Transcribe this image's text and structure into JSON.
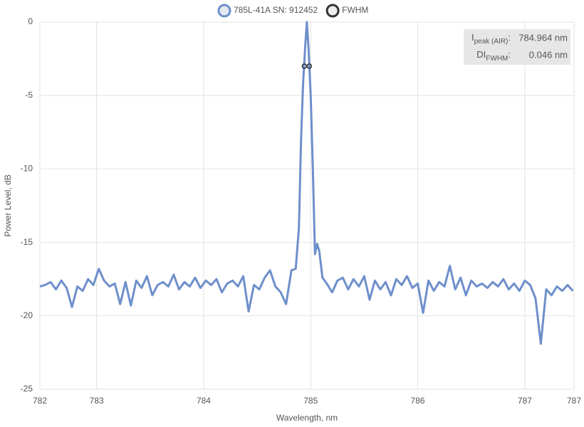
{
  "chart_data": {
    "type": "line",
    "xlabel": "Wavelength, nm",
    "ylabel": "Power Level, dB",
    "xlim": [
      782.47,
      787.46
    ],
    "ylim": [
      -25,
      0
    ],
    "xticks": [
      {
        "value": 782.47,
        "label": "782"
      },
      783,
      784,
      785,
      786,
      787,
      {
        "value": 787.46,
        "label": "787"
      }
    ],
    "yticks": [
      0,
      -5,
      -10,
      -15,
      -20,
      -25
    ],
    "grid": true,
    "x": [
      782.47,
      782.52,
      782.57,
      782.62,
      782.67,
      782.72,
      782.77,
      782.82,
      782.87,
      782.92,
      782.97,
      783.02,
      783.07,
      783.12,
      783.17,
      783.22,
      783.27,
      783.32,
      783.37,
      783.42,
      783.47,
      783.52,
      783.57,
      783.62,
      783.67,
      783.72,
      783.77,
      783.82,
      783.87,
      783.92,
      783.97,
      784.02,
      784.07,
      784.12,
      784.17,
      784.22,
      784.27,
      784.32,
      784.37,
      784.42,
      784.47,
      784.52,
      784.57,
      784.62,
      784.67,
      784.72,
      784.77,
      784.82,
      784.86,
      784.89,
      784.91,
      784.93,
      784.95,
      784.964,
      784.98,
      785.0,
      785.02,
      785.04,
      785.06,
      785.08,
      785.11,
      785.15,
      785.2,
      785.25,
      785.3,
      785.35,
      785.4,
      785.45,
      785.5,
      785.55,
      785.6,
      785.65,
      785.7,
      785.75,
      785.8,
      785.85,
      785.9,
      785.95,
      786.0,
      786.05,
      786.1,
      786.15,
      786.2,
      786.25,
      786.3,
      786.35,
      786.4,
      786.45,
      786.5,
      786.55,
      786.6,
      786.65,
      786.7,
      786.75,
      786.8,
      786.85,
      786.9,
      786.95,
      787.0,
      787.05,
      787.1,
      787.15,
      787.2,
      787.25,
      787.3,
      787.35,
      787.4,
      787.45
    ],
    "series": [
      {
        "name": "785L-41A SN: 912452",
        "color": "#6e8fcb",
        "values": [
          -18.0,
          -17.9,
          -17.7,
          -18.2,
          -17.6,
          -18.1,
          -19.4,
          -18.0,
          -18.3,
          -17.5,
          -17.9,
          -16.8,
          -17.6,
          -18.0,
          -17.8,
          -19.2,
          -17.7,
          -19.3,
          -17.6,
          -18.1,
          -17.3,
          -18.6,
          -17.9,
          -17.7,
          -18.0,
          -17.2,
          -18.2,
          -17.7,
          -18.0,
          -17.4,
          -18.1,
          -17.6,
          -17.9,
          -17.5,
          -18.4,
          -17.8,
          -17.6,
          -18.0,
          -17.3,
          -19.7,
          -17.9,
          -18.2,
          -17.4,
          -16.9,
          -18.0,
          -18.4,
          -19.2,
          -16.9,
          -16.8,
          -14.0,
          -8.0,
          -4.0,
          -1.5,
          0,
          -1.8,
          -5.0,
          -10.0,
          -15.8,
          -15.1,
          -15.6,
          -17.4,
          -17.8,
          -18.4,
          -17.6,
          -17.4,
          -18.2,
          -17.5,
          -18.0,
          -17.3,
          -18.9,
          -17.6,
          -18.2,
          -17.7,
          -18.6,
          -17.5,
          -17.9,
          -17.3,
          -18.1,
          -17.8,
          -19.8,
          -17.6,
          -18.3,
          -17.7,
          -18.0,
          -16.6,
          -18.2,
          -17.4,
          -18.6,
          -17.6,
          -18.0,
          -17.8,
          -18.1,
          -17.7,
          -18.0,
          -17.5,
          -18.2,
          -17.8,
          -18.3,
          -17.6,
          -17.9,
          -18.8,
          -21.9,
          -18.2,
          -18.6,
          -18.0,
          -18.3,
          -17.9,
          -18.3
        ]
      },
      {
        "name": "FWHM",
        "color": "#333333",
        "x": [
          784.941,
          784.987
        ],
        "values": [
          -3,
          -3
        ]
      }
    ],
    "annotation": [
      {
        "symbol": "I",
        "subscript": "peak (AIR)",
        "value": "784.964 nm"
      },
      {
        "symbol": "DI",
        "subscript": "FWHM",
        "value": "0.046 nm"
      }
    ]
  }
}
